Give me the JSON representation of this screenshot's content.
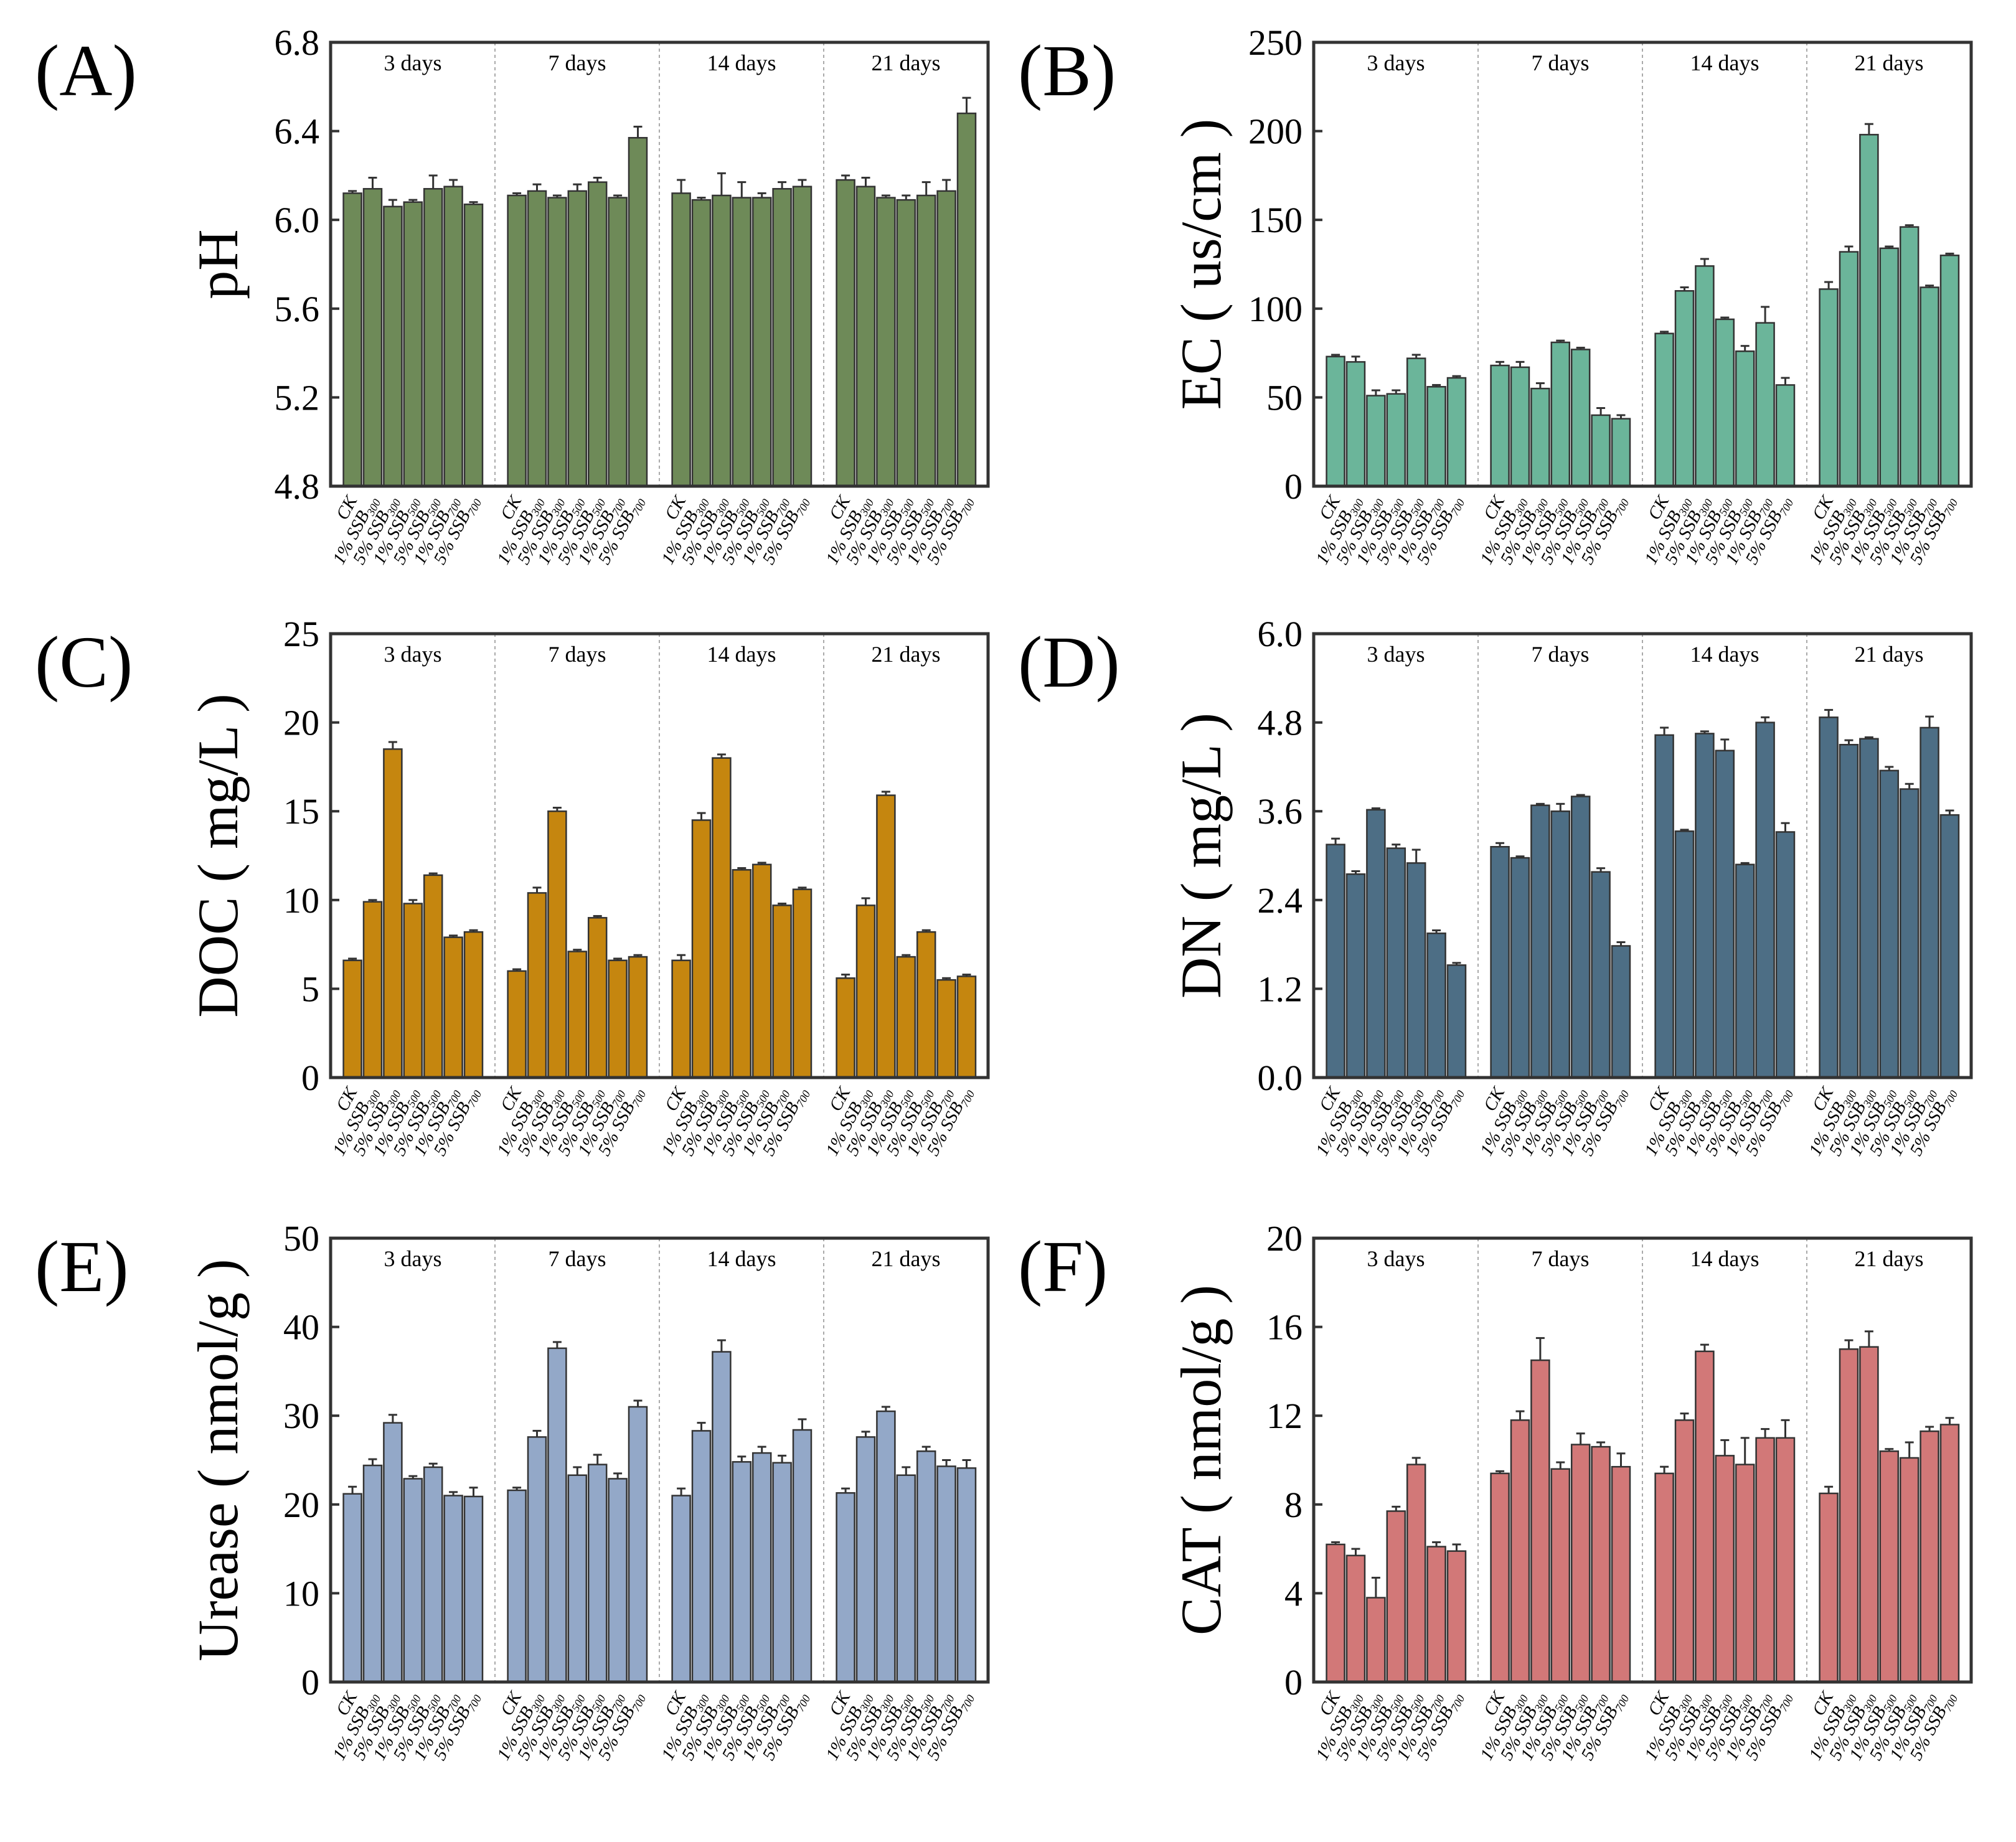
{
  "chart_data": [
    {
      "panel": "(A)",
      "type": "bar",
      "ylabel": "pH",
      "ylim": [
        4.8,
        6.8
      ],
      "yticks": [
        4.8,
        5.2,
        5.6,
        6.0,
        6.4,
        6.8
      ],
      "decimals": 1,
      "color": "#6e8a58",
      "groups": [
        "3 days",
        "7 days",
        "14 days",
        "21 days"
      ],
      "values": [
        [
          6.12,
          6.14,
          6.06,
          6.08,
          6.14,
          6.15,
          6.07
        ],
        [
          6.11,
          6.13,
          6.1,
          6.13,
          6.17,
          6.1,
          6.37
        ],
        [
          6.12,
          6.09,
          6.11,
          6.1,
          6.1,
          6.14,
          6.15
        ],
        [
          6.18,
          6.15,
          6.1,
          6.09,
          6.11,
          6.13,
          6.48
        ]
      ],
      "errors": [
        [
          0.01,
          0.05,
          0.03,
          0.01,
          0.06,
          0.03,
          0.01
        ],
        [
          0.01,
          0.03,
          0.01,
          0.03,
          0.02,
          0.01,
          0.05
        ],
        [
          0.06,
          0.01,
          0.1,
          0.07,
          0.02,
          0.03,
          0.03
        ],
        [
          0.02,
          0.04,
          0.01,
          0.02,
          0.06,
          0.05,
          0.07
        ]
      ]
    },
    {
      "panel": "(B)",
      "type": "bar",
      "ylabel": "EC ( us/cm )",
      "ylim": [
        0,
        250
      ],
      "yticks": [
        0,
        50,
        100,
        150,
        200,
        250
      ],
      "decimals": 0,
      "color": "#6bb59a",
      "groups": [
        "3 days",
        "7 days",
        "14 days",
        "21 days"
      ],
      "values": [
        [
          73,
          70,
          51,
          52,
          72,
          56,
          61
        ],
        [
          68,
          67,
          55,
          81,
          77,
          40,
          38
        ],
        [
          86,
          110,
          124,
          94,
          76,
          92,
          57
        ],
        [
          111,
          132,
          198,
          134,
          146,
          112,
          130
        ]
      ],
      "errors": [
        [
          1,
          3,
          3,
          2,
          2,
          1,
          1
        ],
        [
          2,
          3,
          3,
          1,
          1,
          4,
          2
        ],
        [
          1,
          2,
          4,
          1,
          3,
          9,
          4
        ],
        [
          4,
          3,
          6,
          1,
          1,
          1,
          1
        ]
      ]
    },
    {
      "panel": "(C)",
      "type": "bar",
      "ylabel": "DOC ( mg/L )",
      "ylim": [
        0,
        25
      ],
      "yticks": [
        0,
        5,
        10,
        15,
        20,
        25
      ],
      "decimals": 0,
      "color": "#c5860f",
      "groups": [
        "3 days",
        "7 days",
        "14 days",
        "21 days"
      ],
      "values": [
        [
          6.6,
          9.9,
          18.5,
          9.8,
          11.4,
          7.9,
          8.2
        ],
        [
          6.0,
          10.4,
          15.0,
          7.1,
          9.0,
          6.6,
          6.8
        ],
        [
          6.6,
          14.5,
          18.0,
          11.7,
          12.0,
          9.7,
          10.6
        ],
        [
          5.6,
          9.7,
          15.9,
          6.8,
          8.2,
          5.5,
          5.7
        ]
      ],
      "errors": [
        [
          0.1,
          0.1,
          0.4,
          0.2,
          0.1,
          0.1,
          0.1
        ],
        [
          0.1,
          0.3,
          0.2,
          0.1,
          0.1,
          0.1,
          0.1
        ],
        [
          0.3,
          0.4,
          0.2,
          0.1,
          0.1,
          0.1,
          0.1
        ],
        [
          0.2,
          0.4,
          0.2,
          0.1,
          0.1,
          0.1,
          0.1
        ]
      ]
    },
    {
      "panel": "(D)",
      "type": "bar",
      "ylabel": "DN ( mg/L )",
      "ylim": [
        0,
        6
      ],
      "yticks": [
        0,
        1.2,
        2.4,
        3.6,
        4.8,
        6.0
      ],
      "decimals": 1,
      "color": "#4d6e85",
      "groups": [
        "3 days",
        "7 days",
        "14 days",
        "21 days"
      ],
      "values": [
        [
          3.15,
          2.75,
          3.62,
          3.1,
          2.9,
          1.95,
          1.52
        ],
        [
          3.12,
          2.97,
          3.68,
          3.6,
          3.8,
          2.78,
          1.78
        ],
        [
          4.63,
          3.33,
          4.65,
          4.42,
          2.88,
          4.8,
          3.32
        ],
        [
          4.87,
          4.5,
          4.58,
          4.15,
          3.9,
          4.73,
          3.55
        ]
      ],
      "errors": [
        [
          0.08,
          0.04,
          0.02,
          0.05,
          0.18,
          0.04,
          0.03
        ],
        [
          0.05,
          0.02,
          0.02,
          0.1,
          0.02,
          0.05,
          0.05
        ],
        [
          0.1,
          0.02,
          0.03,
          0.15,
          0.02,
          0.07,
          0.12
        ],
        [
          0.1,
          0.06,
          0.02,
          0.05,
          0.07,
          0.15,
          0.06
        ]
      ]
    },
    {
      "panel": "(E)",
      "type": "bar",
      "ylabel": "Urease ( nmol/g )",
      "ylim": [
        0,
        50
      ],
      "yticks": [
        0,
        10,
        20,
        30,
        40,
        50
      ],
      "decimals": 0,
      "color": "#93a8c8",
      "groups": [
        "3 days",
        "7 days",
        "14 days",
        "21 days"
      ],
      "values": [
        [
          21.2,
          24.4,
          29.2,
          22.9,
          24.2,
          21.0,
          20.9
        ],
        [
          21.6,
          27.6,
          37.6,
          23.3,
          24.5,
          22.9,
          31.0
        ],
        [
          21.0,
          28.3,
          37.2,
          24.8,
          25.8,
          24.7,
          28.4
        ],
        [
          21.3,
          27.6,
          30.5,
          23.3,
          26.0,
          24.3,
          24.1
        ]
      ],
      "errors": [
        [
          0.8,
          0.7,
          0.9,
          0.3,
          0.4,
          0.4,
          1.0
        ],
        [
          0.3,
          0.7,
          0.7,
          0.9,
          1.1,
          0.6,
          0.7
        ],
        [
          0.8,
          0.9,
          1.3,
          0.6,
          0.7,
          0.8,
          1.2
        ],
        [
          0.5,
          0.6,
          0.5,
          0.9,
          0.5,
          0.7,
          0.9
        ]
      ]
    },
    {
      "panel": "(F)",
      "type": "bar",
      "ylabel": "CAT ( nmol/g )",
      "ylim": [
        0,
        20
      ],
      "yticks": [
        0,
        4,
        8,
        12,
        16,
        20
      ],
      "decimals": 0,
      "color": "#d27878",
      "groups": [
        "3 days",
        "7 days",
        "14 days",
        "21 days"
      ],
      "values": [
        [
          6.2,
          5.7,
          3.8,
          7.7,
          9.8,
          6.1,
          5.9
        ],
        [
          9.4,
          11.8,
          14.5,
          9.6,
          10.7,
          10.6,
          9.7
        ],
        [
          9.4,
          11.8,
          14.9,
          10.2,
          9.8,
          11.0,
          11.0
        ],
        [
          8.5,
          15.0,
          15.1,
          10.4,
          10.1,
          11.3,
          11.6
        ]
      ],
      "errors": [
        [
          0.1,
          0.3,
          0.9,
          0.2,
          0.3,
          0.2,
          0.3
        ],
        [
          0.1,
          0.4,
          1.0,
          0.3,
          0.5,
          0.2,
          0.6
        ],
        [
          0.3,
          0.3,
          0.3,
          0.7,
          1.2,
          0.4,
          0.8
        ],
        [
          0.3,
          0.4,
          0.7,
          0.1,
          0.7,
          0.2,
          0.3
        ]
      ]
    }
  ],
  "categories": [
    {
      "pre": "CK",
      "sub": ""
    },
    {
      "pre": "1% SSB",
      "sub": "300"
    },
    {
      "pre": "5% SSB",
      "sub": "300"
    },
    {
      "pre": "1% SSB",
      "sub": "500"
    },
    {
      "pre": "5% SSB",
      "sub": "500"
    },
    {
      "pre": "1% SSB",
      "sub": "700"
    },
    {
      "pre": "5% SSB",
      "sub": "700"
    }
  ]
}
